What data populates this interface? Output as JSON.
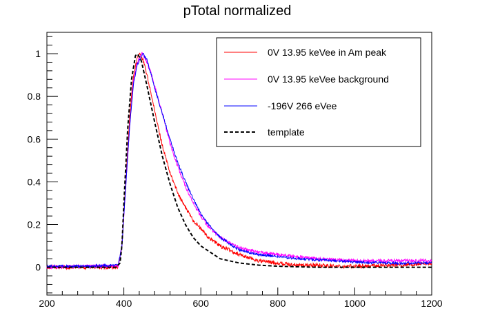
{
  "chart_data": {
    "type": "line",
    "title": "pTotal normalized",
    "xlabel": "",
    "ylabel": "",
    "xlim": [
      200,
      1200
    ],
    "ylim": [
      -0.13,
      1.1
    ],
    "x_ticks": [
      200,
      400,
      600,
      800,
      1000,
      1200
    ],
    "x_tick_labels": [
      "200",
      "400",
      "600",
      "800",
      "1000",
      "1200"
    ],
    "y_ticks": [
      0,
      0.2,
      0.4,
      0.6,
      0.8,
      1
    ],
    "y_tick_labels": [
      "0",
      "0.2",
      "0.4",
      "0.6",
      "0.8",
      "1"
    ],
    "grid": false,
    "legend_position": "top-right",
    "series": [
      {
        "name": "0V 13.95 keVee in Am peak",
        "color": "#ff0000",
        "style": "solid",
        "noise": 0.009,
        "x": [
          200,
          300,
          385,
          395,
          405,
          415,
          425,
          435,
          442,
          450,
          460,
          470,
          480,
          500,
          520,
          540,
          560,
          580,
          600,
          620,
          650,
          700,
          750,
          800,
          850,
          900,
          950,
          1000,
          1100,
          1200
        ],
        "y": [
          0,
          0,
          0,
          0.1,
          0.4,
          0.7,
          0.9,
          0.98,
          1.0,
          0.97,
          0.9,
          0.82,
          0.73,
          0.57,
          0.44,
          0.35,
          0.28,
          0.22,
          0.18,
          0.14,
          0.1,
          0.06,
          0.03,
          0.02,
          0.01,
          0.01,
          0.005,
          0.005,
          0.01,
          0.015
        ]
      },
      {
        "name": "0V 13.95 keVee background",
        "color": "#ff00ff",
        "style": "solid",
        "noise": 0.008,
        "x": [
          200,
          300,
          385,
          395,
          405,
          415,
          425,
          435,
          447,
          455,
          470,
          480,
          500,
          520,
          540,
          560,
          580,
          600,
          620,
          650,
          700,
          750,
          800,
          850,
          900,
          950,
          1000,
          1100,
          1200
        ],
        "y": [
          0,
          0.005,
          0.005,
          0.1,
          0.38,
          0.66,
          0.87,
          0.96,
          1.0,
          0.98,
          0.91,
          0.85,
          0.72,
          0.58,
          0.47,
          0.38,
          0.3,
          0.24,
          0.19,
          0.14,
          0.09,
          0.07,
          0.06,
          0.05,
          0.04,
          0.035,
          0.03,
          0.03,
          0.03
        ]
      },
      {
        "name": "-196V 266 eVee",
        "color": "#0000ff",
        "style": "solid",
        "noise": 0.006,
        "x": [
          200,
          300,
          385,
          395,
          405,
          415,
          425,
          435,
          450,
          460,
          470,
          480,
          500,
          520,
          540,
          560,
          580,
          600,
          620,
          650,
          700,
          750,
          800,
          850,
          900,
          950,
          1000,
          1100,
          1200
        ],
        "y": [
          0.005,
          0.005,
          0.01,
          0.1,
          0.38,
          0.66,
          0.86,
          0.95,
          1.0,
          0.97,
          0.91,
          0.84,
          0.72,
          0.6,
          0.49,
          0.4,
          0.32,
          0.25,
          0.2,
          0.14,
          0.08,
          0.06,
          0.05,
          0.04,
          0.035,
          0.03,
          0.025,
          0.02,
          0.02
        ]
      },
      {
        "name": "template",
        "color": "#000000",
        "style": "dashed",
        "noise": 0,
        "x": [
          200,
          380,
          390,
          395,
          400,
          410,
          420,
          430,
          435,
          445,
          460,
          480,
          500,
          520,
          540,
          560,
          580,
          600,
          650,
          700,
          750,
          800,
          900,
          1200
        ],
        "y": [
          0,
          0,
          0.02,
          0.1,
          0.3,
          0.65,
          0.88,
          0.99,
          1.0,
          0.97,
          0.85,
          0.68,
          0.52,
          0.39,
          0.28,
          0.2,
          0.14,
          0.1,
          0.04,
          0.02,
          0.01,
          0.005,
          0,
          0
        ]
      }
    ]
  }
}
